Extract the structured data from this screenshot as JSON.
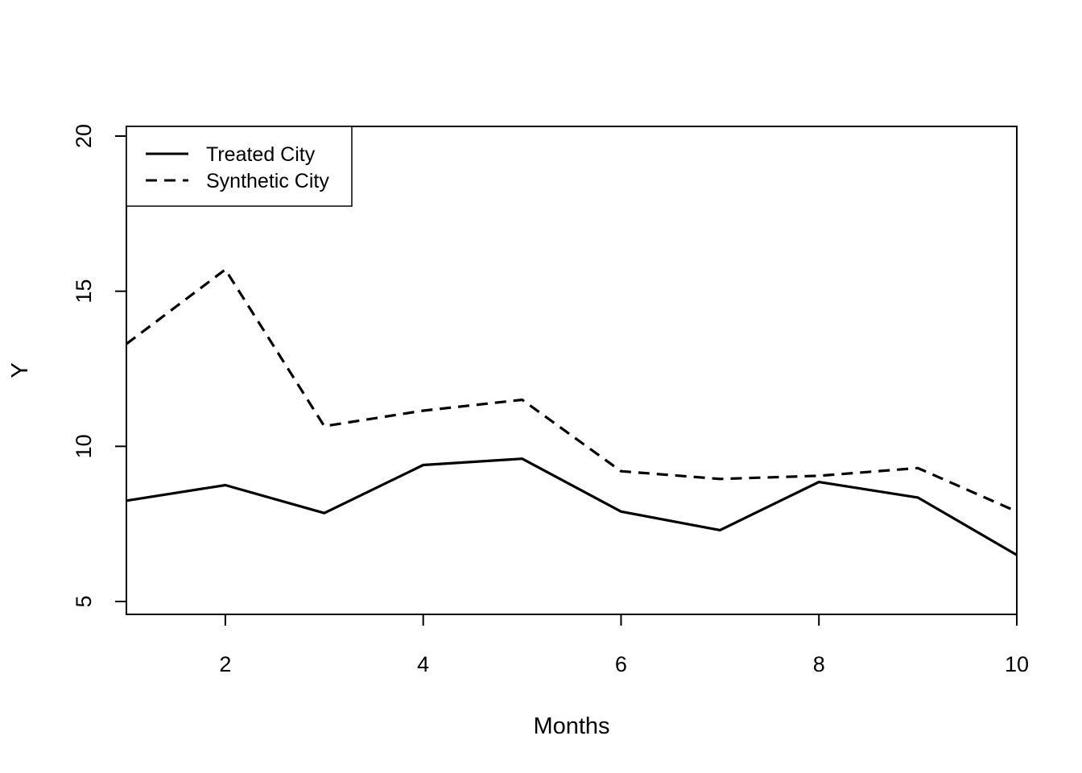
{
  "chart_data": {
    "type": "line",
    "title": "",
    "xlabel": "Months",
    "ylabel": "Y",
    "xlim": [
      1,
      10
    ],
    "ylim": [
      4.6,
      20.3
    ],
    "x_ticks": [
      2,
      4,
      6,
      8,
      10
    ],
    "y_ticks": [
      5,
      10,
      15,
      20
    ],
    "x_tick_labels": [
      "2",
      "4",
      "6",
      "8",
      "10"
    ],
    "y_tick_labels": [
      "5",
      "10",
      "15",
      "20"
    ],
    "grid": false,
    "legend_position": "top-left",
    "x": [
      1,
      2,
      3,
      4,
      5,
      6,
      7,
      8,
      9,
      10
    ],
    "series": [
      {
        "name": "Treated City",
        "line_style": "solid",
        "color": "#000000",
        "values": [
          8.25,
          8.75,
          7.85,
          9.4,
          9.6,
          7.9,
          7.3,
          8.85,
          8.35,
          6.5
        ]
      },
      {
        "name": "Synthetic City",
        "line_style": "dashed",
        "color": "#000000",
        "values": [
          13.3,
          15.7,
          10.65,
          11.15,
          11.5,
          9.2,
          8.95,
          9.05,
          9.3,
          7.9
        ]
      }
    ]
  }
}
